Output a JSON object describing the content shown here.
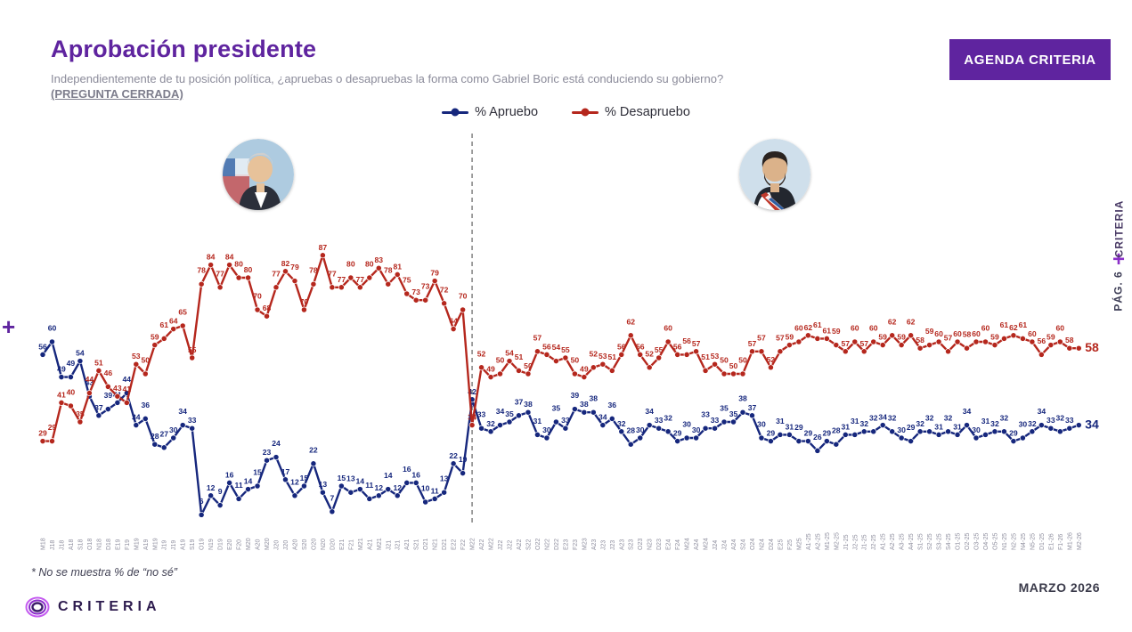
{
  "header": {
    "title": "Aprobación presidente",
    "subtitle": "Independientemente de tu posición política, ¿apruebas o desapruebas la forma como Gabriel Boric está conduciendo su gobierno?",
    "closed_question": "(PREGUNTA CERRADA)",
    "agenda_button": "AGENDA CRITERIA"
  },
  "legend": {
    "apruebo": "% Apruebo",
    "desapruebo": "% Desapruebo"
  },
  "side": {
    "criteria": "CRITERIA",
    "plus": "+",
    "page": "PÁG. 6"
  },
  "decorations": {
    "plus_left": "+"
  },
  "footer": {
    "footnote": "* No se muestra % de “no sé”",
    "date": "MARZO 2026",
    "brand": "CRITERIA"
  },
  "colors": {
    "accent_purple": "#5f249f",
    "apruebo_blue": "#16277d",
    "desapruebo_red": "#b5271d"
  },
  "chart_data": {
    "type": "line",
    "title": "Aprobación presidente",
    "legend_position": "top-center",
    "grid": false,
    "ylim": [
      0,
      100
    ],
    "divider_index": 46,
    "divider_meaning": "cambio de mandato (Piñera / Boric)",
    "x": [
      "M18",
      "J18",
      "J18",
      "A18",
      "S18",
      "O18",
      "N18",
      "D18",
      "E19",
      "F19",
      "M19",
      "A19",
      "M19",
      "J19",
      "J19",
      "A19",
      "S19",
      "O19",
      "N19",
      "D19",
      "E20",
      "F20",
      "M20",
      "A20",
      "M20",
      "J20",
      "J20",
      "A20",
      "S20",
      "O20",
      "N20",
      "D20",
      "E21",
      "F21",
      "M21",
      "A21",
      "M21",
      "J21",
      "J21",
      "A21",
      "S21",
      "O21",
      "N21",
      "D21",
      "E22",
      "F22",
      "M22",
      "A22",
      "M22",
      "J22",
      "J22",
      "A22",
      "S22",
      "O22",
      "N22",
      "D22",
      "E23",
      "F23",
      "M23",
      "A23",
      "J23",
      "J23",
      "A23",
      "S23",
      "O23",
      "N23",
      "D23",
      "E24",
      "F24",
      "M24",
      "A24",
      "M24",
      "J24",
      "J24",
      "A24",
      "S24",
      "O24",
      "N24",
      "D24",
      "E25",
      "F25",
      "M25",
      "A1-25",
      "A2-25",
      "M1-25",
      "M2-25",
      "J1-25",
      "J2-25",
      "J1-25",
      "J2-25",
      "A1-25",
      "A2-25",
      "A3-25",
      "A4-25",
      "S1-25",
      "S2-25",
      "S3-25",
      "S4-25",
      "O1-25",
      "O2-25",
      "O3-25",
      "O4-25",
      "O5-25",
      "N1-25",
      "N2-25",
      "N4-25",
      "N5-25",
      "D1-25",
      "E1-26",
      "F1-26",
      "M1-26",
      "M2-26"
    ],
    "series": [
      {
        "name": "% Apruebo",
        "color": "#16277d",
        "values": [
          56,
          60,
          49,
          49,
          54,
          43,
          37,
          39,
          41,
          44,
          34,
          36,
          28,
          27,
          30,
          34,
          33,
          6,
          12,
          9,
          16,
          11,
          14,
          15,
          23,
          24,
          17,
          12,
          15,
          22,
          13,
          7,
          15,
          13,
          14,
          11,
          12,
          14,
          12,
          16,
          16,
          10,
          11,
          13,
          22,
          19,
          42,
          33,
          32,
          34,
          35,
          37,
          38,
          31,
          30,
          35,
          33,
          39,
          38,
          38,
          34,
          36,
          32,
          28,
          30,
          34,
          33,
          32,
          29,
          30,
          30,
          33,
          33,
          35,
          35,
          38,
          37,
          30,
          29,
          31,
          31,
          29,
          29,
          26,
          29,
          28,
          31,
          31,
          32,
          32,
          34,
          32,
          30,
          29,
          32,
          32,
          31,
          32,
          31,
          34,
          30,
          31,
          32,
          32,
          29,
          30,
          32,
          34,
          33,
          32,
          33,
          34
        ]
      },
      {
        "name": "% Desapruebo",
        "color": "#b5271d",
        "values": [
          29,
          29,
          41,
          40,
          35,
          44,
          51,
          46,
          43,
          41,
          53,
          50,
          59,
          61,
          64,
          65,
          55,
          78,
          84,
          77,
          84,
          80,
          80,
          70,
          68,
          77,
          82,
          79,
          70,
          78,
          87,
          77,
          77,
          80,
          77,
          80,
          83,
          78,
          81,
          75,
          73,
          73,
          79,
          72,
          64,
          70,
          34,
          52,
          49,
          50,
          54,
          51,
          50,
          57,
          56,
          54,
          55,
          50,
          49,
          52,
          53,
          51,
          56,
          62,
          56,
          52,
          55,
          60,
          56,
          56,
          57,
          51,
          53,
          50,
          50,
          50,
          57,
          57,
          52,
          57,
          59,
          60,
          62,
          61,
          61,
          59,
          57,
          60,
          57,
          60,
          59,
          62,
          59,
          62,
          58,
          59,
          60,
          57,
          60,
          58,
          60,
          60,
          59,
          61,
          62,
          61,
          60,
          56,
          59,
          60,
          58,
          58
        ]
      }
    ]
  }
}
